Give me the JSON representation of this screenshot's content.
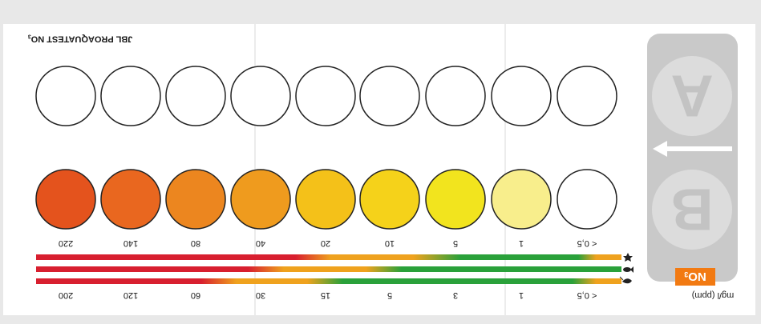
{
  "brand": "JBL PROAQUATEST NO",
  "brand_sub": "3",
  "tab": {
    "top_letter": "A",
    "bottom_letter": "B"
  },
  "param": {
    "label": "NO",
    "sub": "3"
  },
  "unit": "mg/l (ppm)",
  "scale": {
    "top": [
      "< 0,5",
      "1",
      "5",
      "10",
      "20",
      "40",
      "80",
      "140",
      "220"
    ],
    "bottom": [
      "< 0,5",
      "1",
      "3",
      "5",
      "15",
      "30",
      "60",
      "120",
      "200"
    ]
  },
  "swatch_colors": [
    "#ffffff",
    "#f8ee8c",
    "#f2e41e",
    "#f5d21a",
    "#f4c119",
    "#ef9b1e",
    "#ec861f",
    "#e9671f",
    "#e4531d"
  ],
  "bar_colors": {
    "green": "#2aa13a",
    "orange": "#efa21e",
    "red": "#d81f2f"
  },
  "tab_color": "#c9c9c9",
  "icons": [
    "star-icon",
    "fish-icon",
    "shrimp-icon"
  ]
}
